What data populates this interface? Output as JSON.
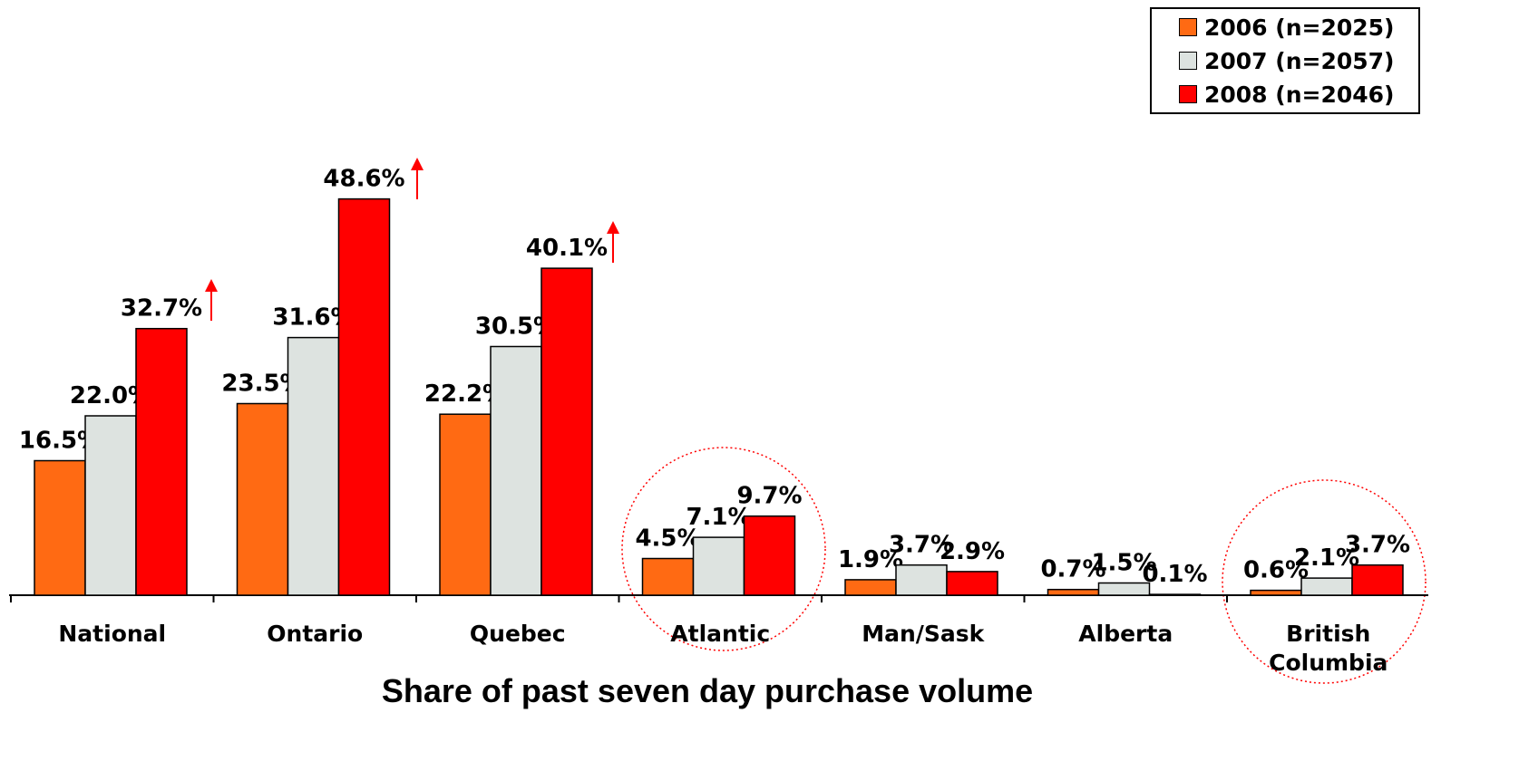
{
  "chart_data": {
    "type": "bar",
    "xlabel": "Share of past seven day purchase volume",
    "categories": [
      "National",
      "Ontario",
      "Quebec",
      "Atlantic",
      "Man/Sask",
      "Alberta",
      "British Columbia"
    ],
    "series": [
      {
        "name": "2006 (n=2025)",
        "color": "#ff6a13",
        "values": [
          16.5,
          23.5,
          22.2,
          4.5,
          1.9,
          0.7,
          0.6
        ],
        "value_labels": [
          "16.5%",
          "23.5%",
          "22.2%",
          "4.5%",
          "1.9%",
          "0.7%",
          "0.6%"
        ]
      },
      {
        "name": "2007 (n=2057)",
        "color": "#dde3e0",
        "values": [
          22.0,
          31.6,
          30.5,
          7.1,
          3.7,
          1.5,
          2.1
        ],
        "value_labels": [
          "22.0%",
          "31.6%",
          "30.5%",
          "7.1%",
          "3.7%",
          "1.5%",
          "2.1%"
        ]
      },
      {
        "name": "2008 (n=2046)",
        "color": "#ff0000",
        "values": [
          32.7,
          48.6,
          40.1,
          9.7,
          2.9,
          0.1,
          3.7
        ],
        "value_labels": [
          "32.7%",
          "48.6%",
          "40.1%",
          "9.7%",
          "2.9%",
          "0.1%",
          "3.7%"
        ]
      }
    ],
    "legend": "upper right"
  }
}
